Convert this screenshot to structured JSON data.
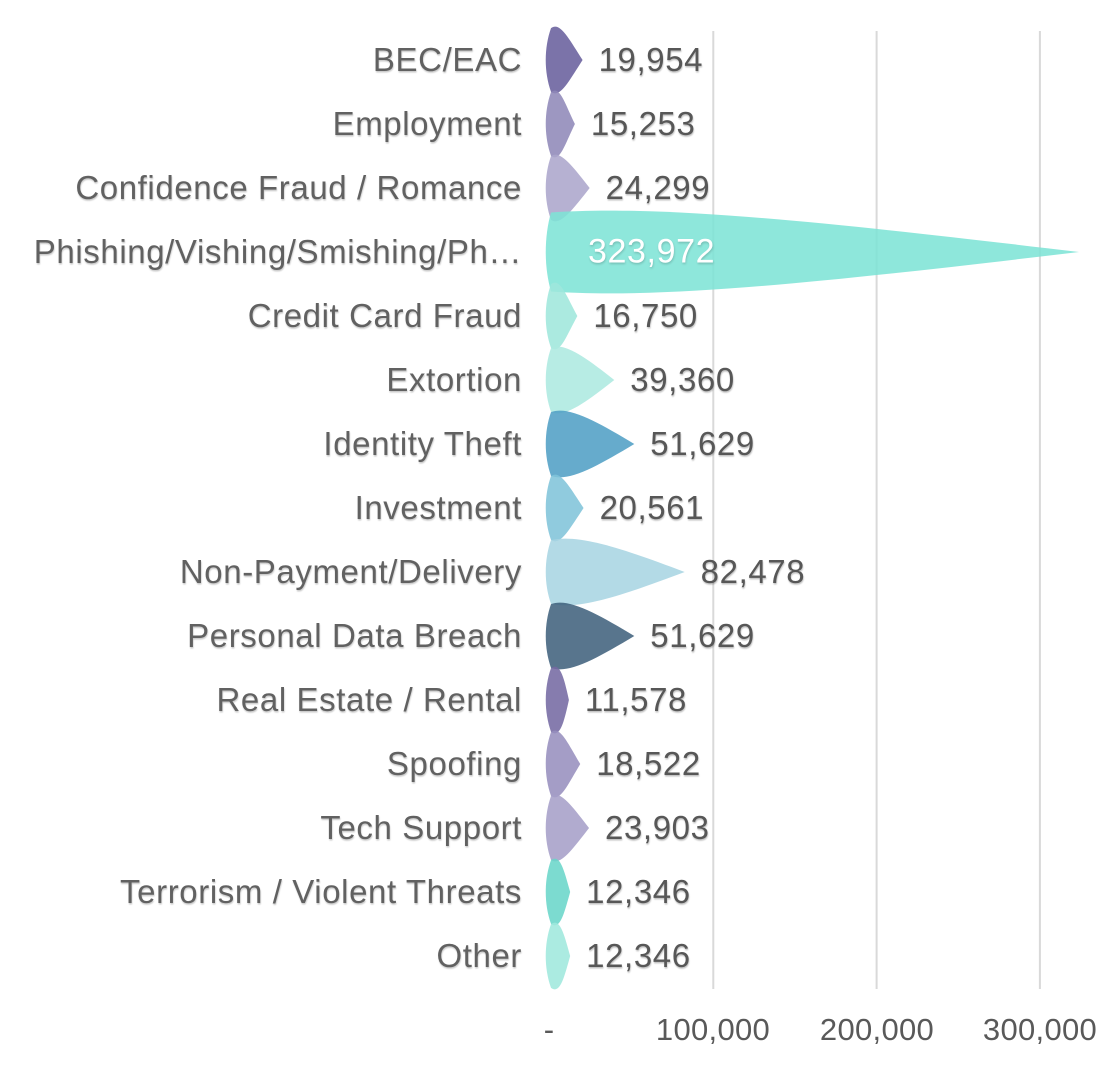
{
  "chart_data": {
    "type": "bar",
    "variant": "horizontal-teardrop",
    "title": "",
    "xlabel": "",
    "ylabel": "",
    "categories": [
      "BEC/EAC",
      "Employment",
      "Confidence Fraud / Romance",
      "Phishing/Vishing/Smishing/Ph…",
      "Credit Card Fraud",
      "Extortion",
      "Identity Theft",
      "Investment",
      "Non-Payment/Delivery",
      "Personal Data Breach",
      "Real Estate / Rental",
      "Spoofing",
      "Tech Support",
      "Terrorism / Violent Threats",
      "Other"
    ],
    "values": [
      19954,
      15253,
      24299,
      323972,
      16750,
      39360,
      51629,
      20561,
      82478,
      51629,
      11578,
      18522,
      23903,
      12346,
      12346
    ],
    "value_labels": [
      "19,954",
      "15,253",
      "24,299",
      "323,972",
      "16,750",
      "39,360",
      "51,629",
      "20,561",
      "82,478",
      "51,629",
      "11,578",
      "18,522",
      "23,903",
      "12,346",
      "12,346"
    ],
    "bar_colors": [
      "#675e9c",
      "#8e87b8",
      "#aba5cb",
      "#7de4d6",
      "#9fe7db",
      "#ace9e0",
      "#4f9fc4",
      "#7fc3d9",
      "#a8d5e2",
      "#3f617c",
      "#7469a2",
      "#978fbe",
      "#a59ec8",
      "#68d6c9",
      "#9fe8dc"
    ],
    "inside_label": {
      "index": 3,
      "color": "#ffffff"
    },
    "x_axis": {
      "min": 0,
      "max": 340000,
      "ticks": [
        {
          "label": "-",
          "value": 0
        },
        {
          "label": "100,000",
          "value": 100000
        },
        {
          "label": "200,000",
          "value": 200000
        },
        {
          "label": "300,000",
          "value": 300000
        }
      ]
    },
    "grid": {
      "show": true,
      "color": "#d9d9d9"
    },
    "legend": null,
    "text_colors": {
      "category": "#616161",
      "value": "#575757",
      "axis": "#595959"
    }
  }
}
